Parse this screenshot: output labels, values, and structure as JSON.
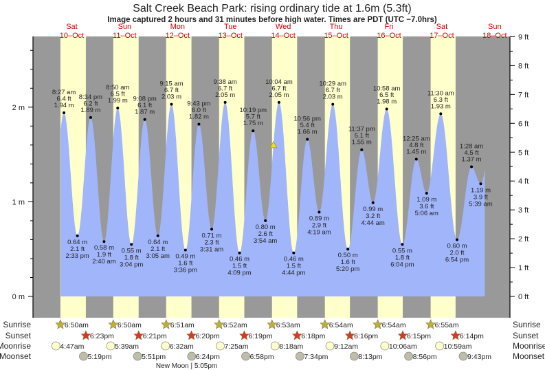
{
  "chart_data": {
    "type": "area",
    "title": "Salt Creek Beach Park: rising  ordinary tide at 1.6m (5.3ft)",
    "subtitle": "Image captured 2 hours and 31 minutes before high water. Times are PDT (UTC −7.0hrs)",
    "days": [
      {
        "dow": "Sat",
        "date": "10–Oct"
      },
      {
        "dow": "Sun",
        "date": "11–Oct"
      },
      {
        "dow": "Mon",
        "date": "12–Oct"
      },
      {
        "dow": "Tue",
        "date": "13–Oct"
      },
      {
        "dow": "Wed",
        "date": "14–Oct"
      },
      {
        "dow": "Thu",
        "date": "15–Oct"
      },
      {
        "dow": "Fri",
        "date": "16–Oct"
      },
      {
        "dow": "Sat",
        "date": "17–Oct"
      },
      {
        "dow": "Sun",
        "date": "18–Oct"
      }
    ],
    "y_left": {
      "unit": "m",
      "ticks": [
        "0 m",
        "1 m",
        "2 m"
      ],
      "range": [
        0,
        2.74
      ]
    },
    "y_right": {
      "unit": "ft",
      "ticks": [
        "0 ft",
        "1 ft",
        "2 ft",
        "3 ft",
        "4 ft",
        "5 ft",
        "6 ft",
        "7 ft",
        "8 ft",
        "9 ft"
      ],
      "range": [
        0,
        9
      ]
    },
    "current": {
      "day": 4,
      "time": "7:33 am",
      "m": 1.6,
      "ft": 5.3
    },
    "extremes": [
      {
        "day": 0,
        "type": "high",
        "time": "8:27 am",
        "ft": "6.4 ft",
        "m": 1.94
      },
      {
        "day": 0,
        "type": "low",
        "time": "2:33 pm",
        "ft": "2.1 ft",
        "m": 0.64
      },
      {
        "day": 0,
        "type": "high",
        "time": "8:34 pm",
        "ft": "6.2 ft",
        "m": 1.89
      },
      {
        "day": 1,
        "type": "low",
        "time": "2:40 am",
        "ft": "1.9 ft",
        "m": 0.58
      },
      {
        "day": 1,
        "type": "high",
        "time": "8:50 am",
        "ft": "6.5 ft",
        "m": 1.99
      },
      {
        "day": 1,
        "type": "low",
        "time": "3:04 pm",
        "ft": "1.8 ft",
        "m": 0.55
      },
      {
        "day": 1,
        "type": "high",
        "time": "9:08 pm",
        "ft": "6.1 ft",
        "m": 1.87
      },
      {
        "day": 2,
        "type": "low",
        "time": "3:05 am",
        "ft": "2.1 ft",
        "m": 0.64
      },
      {
        "day": 2,
        "type": "high",
        "time": "9:15 am",
        "ft": "6.7 ft",
        "m": 2.03
      },
      {
        "day": 2,
        "type": "low",
        "time": "3:36 pm",
        "ft": "1.6 ft",
        "m": 0.49
      },
      {
        "day": 2,
        "type": "high",
        "time": "9:43 pm",
        "ft": "6.0 ft",
        "m": 1.82
      },
      {
        "day": 3,
        "type": "low",
        "time": "3:31 am",
        "ft": "2.3 ft",
        "m": 0.71
      },
      {
        "day": 3,
        "type": "high",
        "time": "9:38 am",
        "ft": "6.7 ft",
        "m": 2.05
      },
      {
        "day": 3,
        "type": "low",
        "time": "4:09 pm",
        "ft": "1.5 ft",
        "m": 0.46
      },
      {
        "day": 3,
        "type": "high",
        "time": "10:19 pm",
        "ft": "5.7 ft",
        "m": 1.75
      },
      {
        "day": 4,
        "type": "low",
        "time": "3:54 am",
        "ft": "2.6 ft",
        "m": 0.8
      },
      {
        "day": 4,
        "type": "high",
        "time": "10:04 am",
        "ft": "6.7 ft",
        "m": 2.05
      },
      {
        "day": 4,
        "type": "low",
        "time": "4:44 pm",
        "ft": "1.5 ft",
        "m": 0.46
      },
      {
        "day": 4,
        "type": "high",
        "time": "10:56 pm",
        "ft": "5.4 ft",
        "m": 1.66
      },
      {
        "day": 5,
        "type": "low",
        "time": "4:19 am",
        "ft": "2.9 ft",
        "m": 0.89
      },
      {
        "day": 5,
        "type": "high",
        "time": "10:29 am",
        "ft": "6.7 ft",
        "m": 2.03
      },
      {
        "day": 5,
        "type": "low",
        "time": "5:20 pm",
        "ft": "1.6 ft",
        "m": 0.5
      },
      {
        "day": 5,
        "type": "high",
        "time": "11:37 pm",
        "ft": "5.1 ft",
        "m": 1.55
      },
      {
        "day": 6,
        "type": "low",
        "time": "4:44 am",
        "ft": "3.2 ft",
        "m": 0.99
      },
      {
        "day": 6,
        "type": "high",
        "time": "10:58 am",
        "ft": "6.5 ft",
        "m": 1.98
      },
      {
        "day": 6,
        "type": "low",
        "time": "6:04 pm",
        "ft": "1.8 ft",
        "m": 0.55
      },
      {
        "day": 7,
        "type": "high",
        "time": "12:25 am",
        "ft": "4.8 ft",
        "m": 1.45
      },
      {
        "day": 7,
        "type": "low",
        "time": "5:06 am",
        "ft": "3.6 ft",
        "m": 1.09
      },
      {
        "day": 7,
        "type": "high",
        "time": "11:30 am",
        "ft": "6.3 ft",
        "m": 1.93
      },
      {
        "day": 7,
        "type": "low",
        "time": "6:54 pm",
        "ft": "2.0 ft",
        "m": 0.6
      },
      {
        "day": 8,
        "type": "high",
        "time": "1:28 am",
        "ft": "4.5 ft",
        "m": 1.37
      },
      {
        "day": 8,
        "type": "low",
        "time": "5:39 am",
        "ft": "3.9 ft",
        "m": 1.19
      }
    ],
    "astro": {
      "sunrise": {
        "label": "Sunrise",
        "times": [
          "6:50am",
          "6:50am",
          "6:51am",
          "6:52am",
          "6:53am",
          "6:54am",
          "6:54am",
          "6:55am"
        ]
      },
      "sunset": {
        "label": "Sunset",
        "times": [
          "6:23pm",
          "6:21pm",
          "6:20pm",
          "6:19pm",
          "6:18pm",
          "6:16pm",
          "6:15pm",
          "6:14pm"
        ]
      },
      "moonrise": {
        "label": "Moonrise",
        "times": [
          "4:47am",
          "5:39am",
          "6:32am",
          "7:25am",
          "8:18am",
          "9:12am",
          "10:06am",
          "10:59am"
        ]
      },
      "moonset": {
        "label": "Moonset",
        "times": [
          "5:19pm",
          "5:51pm",
          "6:24pm",
          "6:58pm",
          "7:34pm",
          "8:13pm",
          "8:56pm",
          "9:43pm"
        ]
      },
      "moon_phase": {
        "day": 2,
        "time": "5:05pm",
        "label": "New Moon | 5:05pm"
      }
    },
    "colors": {
      "night": "#999999",
      "day": "#ffffcc",
      "water": "#a1b5fb",
      "dow": "#cc0000",
      "sunrise": "#b8b23a",
      "sunset": "#d23b2b",
      "moonrise": "#ffffcc",
      "moonset": "#bdbdaa"
    }
  }
}
